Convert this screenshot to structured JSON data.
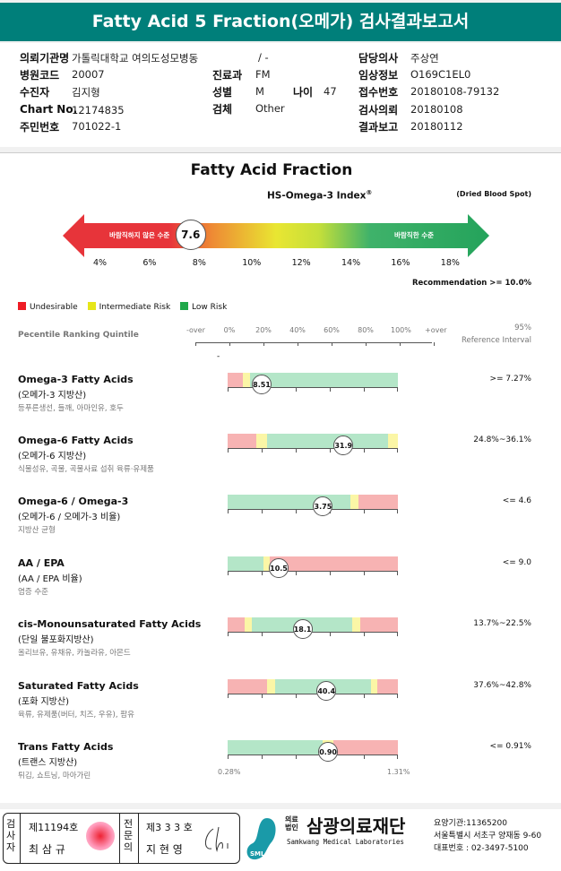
{
  "title": "Fatty Acid 5 Fraction(오메가) 검사결과보고서",
  "info": {
    "institution_label": "의뢰기관명",
    "institution": "가톨릭대학교 여의도성모병동",
    "ward": "/ -",
    "hospital_code_label": "병원코드",
    "hospital_code": "20007",
    "patient_label": "수진자",
    "patient": "김지형",
    "chart_label": "Chart No.",
    "chart": "12174835",
    "rrn_label": "주민번호",
    "rrn": "701022-1",
    "dept_label": "진료과",
    "dept": "FM",
    "sex_label": "성별",
    "sex": "M",
    "age_label": "나이",
    "age": "47",
    "specimen_label": "검체",
    "specimen": "Other",
    "doctor_label": "담당의사",
    "doctor": "주상연",
    "clinical_label": "임상정보",
    "clinical": "O169C1EL0",
    "reception_label": "접수번호",
    "reception": "20180108-79132",
    "request_label": "검사의뢰",
    "request": "20180108",
    "report_label": "결과보고",
    "report": "20180112"
  },
  "index": {
    "heading": "Fatty Acid Fraction",
    "name": "HS-Omega-3 Index",
    "reg": "®",
    "specimen": "(Dried Blood Spot)",
    "left_text": "바람직하지 않은 수준",
    "right_text": "바람직한 수준",
    "value": 7.6,
    "value_label": "7.6",
    "ticks": [
      "4%",
      "6%",
      "8%",
      "10%",
      "12%",
      "14%",
      "16%",
      "18%"
    ],
    "tick_values": [
      4,
      6,
      8,
      10,
      12,
      14,
      16,
      18
    ],
    "recommendation": "Recommendation  >= 10.0%"
  },
  "legend": [
    {
      "label": "Undesirable",
      "color": "#ee1c25"
    },
    {
      "label": "Intermediate Risk",
      "color": "#e6e619"
    },
    {
      "label": "Low Risk",
      "color": "#20a84a"
    }
  ],
  "scale": {
    "title": "Pecentile Ranking Quintile",
    "labels": [
      "-over",
      "0%",
      "20%",
      "40%",
      "60%",
      "80%",
      "100%",
      "+over"
    ],
    "ref_title1": "95%",
    "ref_title2": "Reference Interval",
    "dash": "-"
  },
  "colors": {
    "r": "#f7b3b3",
    "y": "#fbf6a6",
    "g": "#b4e6c8"
  },
  "results": [
    {
      "name": "Omega-3 Fatty Acids",
      "sub": "(오메가-3 지방산)",
      "food": "등푸른생선, 들깨, 아마인유, 호두",
      "value": "8.51",
      "percentile": 20,
      "ref": ">= 7.27%",
      "segments": [
        [
          "r",
          9
        ],
        [
          "y",
          4
        ],
        [
          "g",
          87
        ]
      ]
    },
    {
      "name": "Omega-6 Fatty Acids",
      "sub": "(오메가-6 지방산)",
      "food": "식물성유, 곡물, 곡물사료 섭취 육류·유제품",
      "value": "31.9",
      "percentile": 68,
      "ref": "24.8%~36.1%",
      "segments": [
        [
          "r",
          17
        ],
        [
          "y",
          6
        ],
        [
          "g",
          71
        ],
        [
          "y",
          6
        ]
      ]
    },
    {
      "name": "Omega-6 / Omega-3",
      "sub": "(오메가-6 / 오메가-3 비율)",
      "food": "지방산 균형",
      "value": "3.75",
      "percentile": 56,
      "ref": "<= 4.6",
      "segments": [
        [
          "g",
          72
        ],
        [
          "y",
          5
        ],
        [
          "r",
          23
        ]
      ]
    },
    {
      "name": "AA / EPA",
      "sub": "(AA / EPA 비율)",
      "food": "염증 수준",
      "value": "10.5",
      "percentile": 30,
      "ref": "<= 9.0",
      "segments": [
        [
          "g",
          21
        ],
        [
          "y",
          4
        ],
        [
          "r",
          75
        ]
      ]
    },
    {
      "name": "cis-Monounsaturated Fatty Acids",
      "sub": "(단일 불포화지방산)",
      "food": "올리브유, 유채유, 카놀라유, 아몬드",
      "value": "18.1",
      "percentile": 44,
      "ref": "13.7%~22.5%",
      "segments": [
        [
          "r",
          10
        ],
        [
          "y",
          4
        ],
        [
          "g",
          59
        ],
        [
          "y",
          5
        ],
        [
          "r",
          22
        ]
      ]
    },
    {
      "name": "Saturated Fatty Acids",
      "sub": "(포화 지방산)",
      "food": "육류, 유제품(버터, 치즈, 우유), 팜유",
      "value": "40.4",
      "percentile": 58,
      "ref": "37.6%~42.8%",
      "segments": [
        [
          "r",
          23
        ],
        [
          "y",
          5
        ],
        [
          "g",
          56
        ],
        [
          "y",
          4
        ],
        [
          "r",
          12
        ]
      ]
    },
    {
      "name": "Trans Fatty Acids",
      "sub": "(트랜스 지방산)",
      "food": "튀김, 쇼트닝, 마아가린",
      "value": "0.90",
      "percentile": 59,
      "ref": "<= 0.91%",
      "segments": [
        [
          "g",
          56
        ],
        [
          "y",
          6
        ],
        [
          "r",
          38
        ]
      ]
    }
  ],
  "trans_range": {
    "min": "0.28%",
    "max": "1.31%"
  },
  "footer": {
    "box1_label": "검사자",
    "box1_no": "제11194호",
    "box1_name": "최 삼 규",
    "box2_label": "전문의",
    "box2_no": "제3 3 3 호",
    "box2_name": "지 현 영",
    "corp1": "의료",
    "corp2": "법인",
    "org": "삼광의료재단",
    "org_en": "Samkwang Medical Laboratories",
    "logo": "SML",
    "code": "요양기관:11365200",
    "addr": "서울특별시 서초구 양재동 9-60",
    "phone": "대표번호 : 02-3497-5100"
  }
}
